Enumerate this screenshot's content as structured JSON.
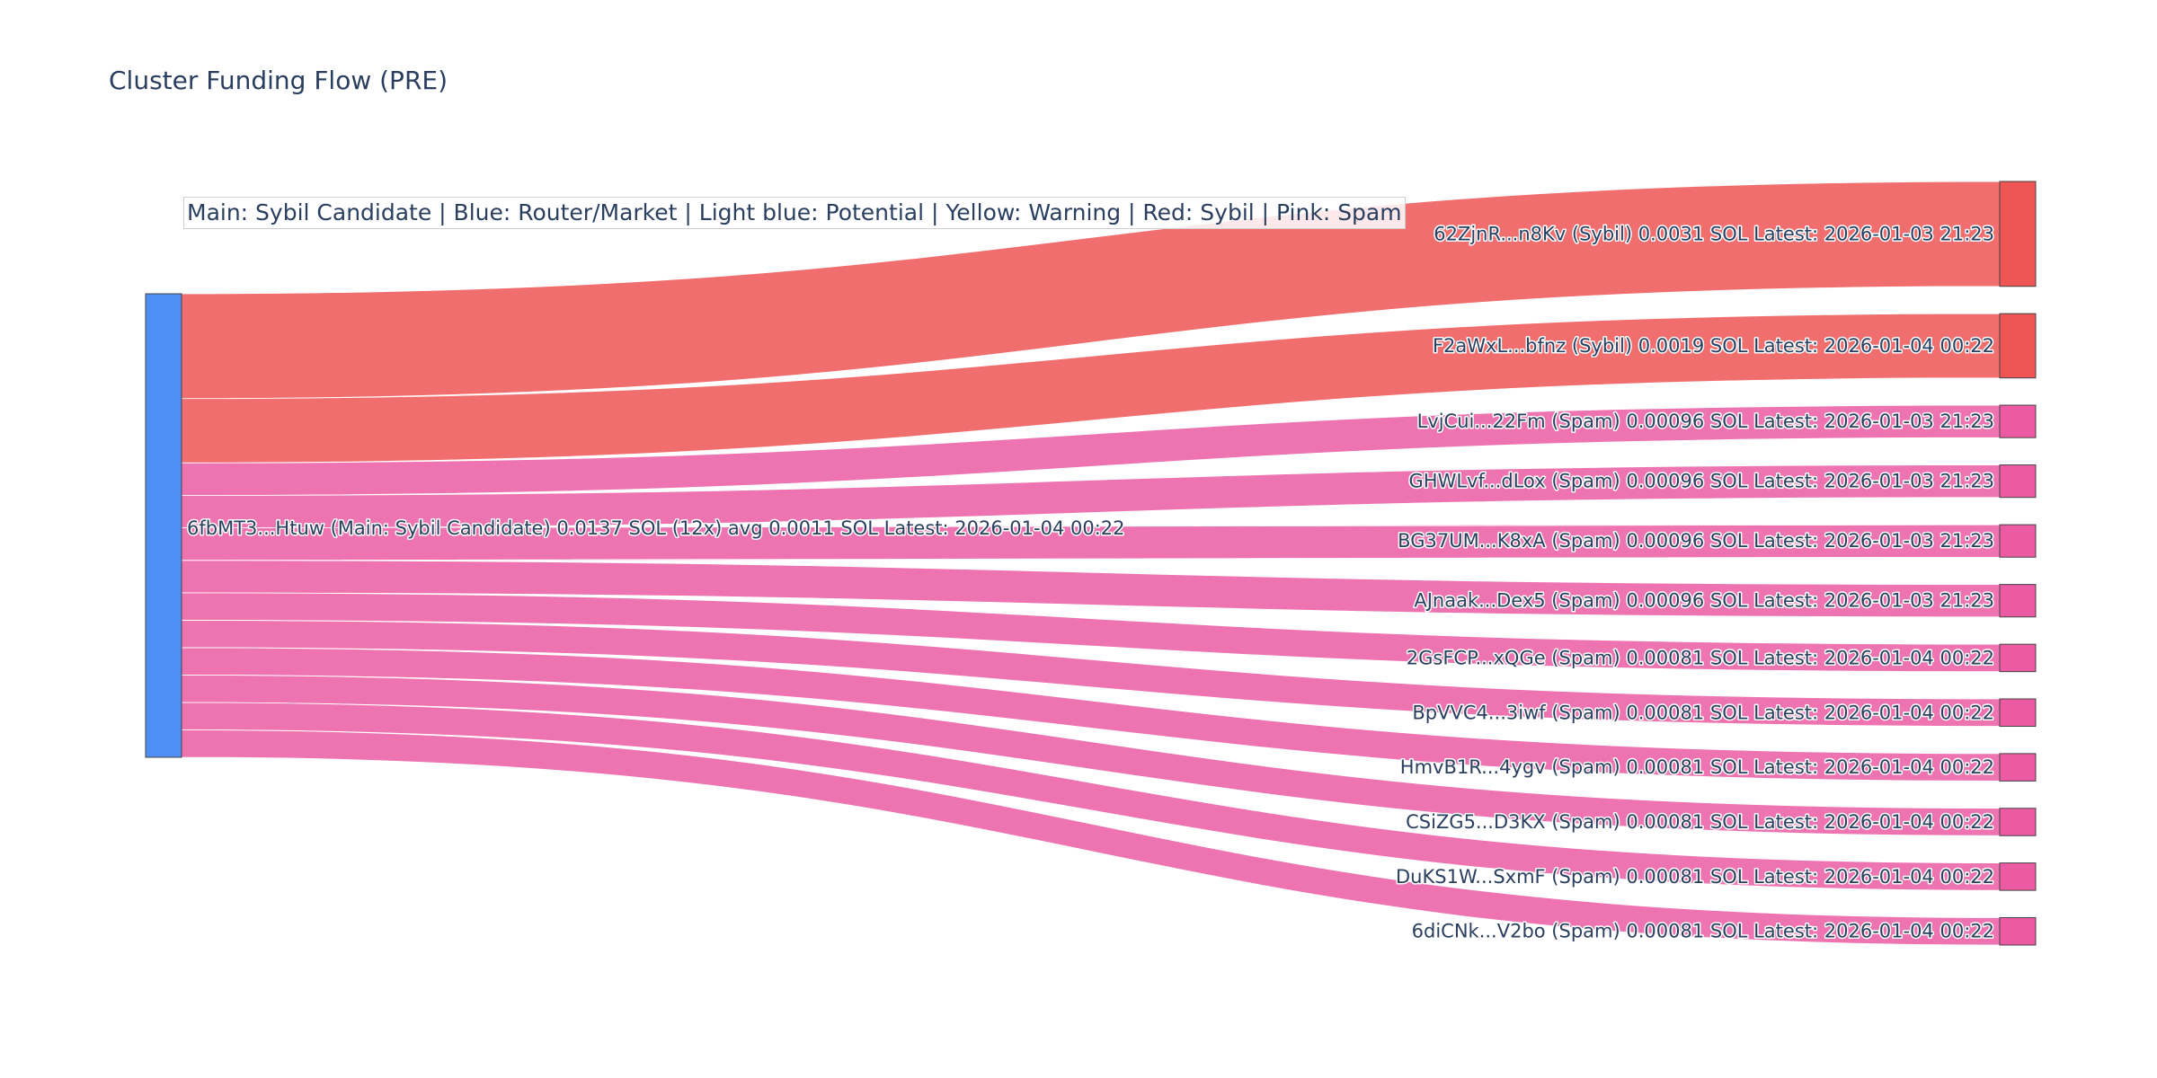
{
  "title": "Cluster Funding Flow (PRE)",
  "legend_note": "Main: Sybil Candidate  |  Blue: Router/Market | Light blue: Potential | Yellow: Warning | Red: Sybil | Pink: Spam",
  "colors": {
    "main": "#4f8ef5",
    "sybil": "#ef5555",
    "spam": "#eb5aa3",
    "text": "#2a3f5f"
  },
  "chart_data": {
    "type": "sankey",
    "unit": "SOL",
    "source": {
      "id": "6fbMT3...Htuw",
      "label": "6fbMT3...Htuw (Main: Sybil Candidate) 0.0137 SOL (12x) avg 0.0011 SOL Latest: 2026-01-04 00:22",
      "category": "main",
      "total": 0.0137,
      "count": 12,
      "avg": 0.0011,
      "latest": "2026-01-04 00:22"
    },
    "targets": [
      {
        "id": "62ZjnR...n8Kv",
        "category": "sybil",
        "value": 0.0031,
        "label": "62ZjnR...n8Kv (Sybil) 0.0031 SOL Latest: 2026-01-03 21:23"
      },
      {
        "id": "F2aWxL...bfnz",
        "category": "sybil",
        "value": 0.0019,
        "label": "F2aWxL...bfnz (Sybil) 0.0019 SOL Latest: 2026-01-04 00:22"
      },
      {
        "id": "LvjCui...22Fm",
        "category": "spam",
        "value": 0.00096,
        "label": "LvjCui...22Fm (Spam) 0.00096 SOL Latest: 2026-01-03 21:23"
      },
      {
        "id": "GHWLvf...dLox",
        "category": "spam",
        "value": 0.00096,
        "label": "GHWLvf...dLox (Spam) 0.00096 SOL Latest: 2026-01-03 21:23"
      },
      {
        "id": "BG37UM...K8xA",
        "category": "spam",
        "value": 0.00096,
        "label": "BG37UM...K8xA (Spam) 0.00096 SOL Latest: 2026-01-03 21:23"
      },
      {
        "id": "AJnaak...Dex5",
        "category": "spam",
        "value": 0.00096,
        "label": "AJnaak...Dex5 (Spam) 0.00096 SOL Latest: 2026-01-03 21:23"
      },
      {
        "id": "2GsFCP...xQGe",
        "category": "spam",
        "value": 0.00081,
        "label": "2GsFCP...xQGe (Spam) 0.00081 SOL Latest: 2026-01-04 00:22"
      },
      {
        "id": "BpVVC4...3iwf",
        "category": "spam",
        "value": 0.00081,
        "label": "BpVVC4...3iwf (Spam) 0.00081 SOL Latest: 2026-01-04 00:22"
      },
      {
        "id": "HmvB1R...4ygv",
        "category": "spam",
        "value": 0.00081,
        "label": "HmvB1R...4ygv (Spam) 0.00081 SOL Latest: 2026-01-04 00:22"
      },
      {
        "id": "CSiZG5...D3KX",
        "category": "spam",
        "value": 0.00081,
        "label": "CSiZG5...D3KX (Spam) 0.00081 SOL Latest: 2026-01-04 00:22"
      },
      {
        "id": "DuKS1W...SxmF",
        "category": "spam",
        "value": 0.00081,
        "label": "DuKS1W...SxmF (Spam) 0.00081 SOL Latest: 2026-01-04 00:22"
      },
      {
        "id": "6diCNk...V2bo",
        "category": "spam",
        "value": 0.00081,
        "label": "6diCNk...V2bo (Spam) 0.00081 SOL Latest: 2026-01-04 00:22"
      }
    ]
  }
}
